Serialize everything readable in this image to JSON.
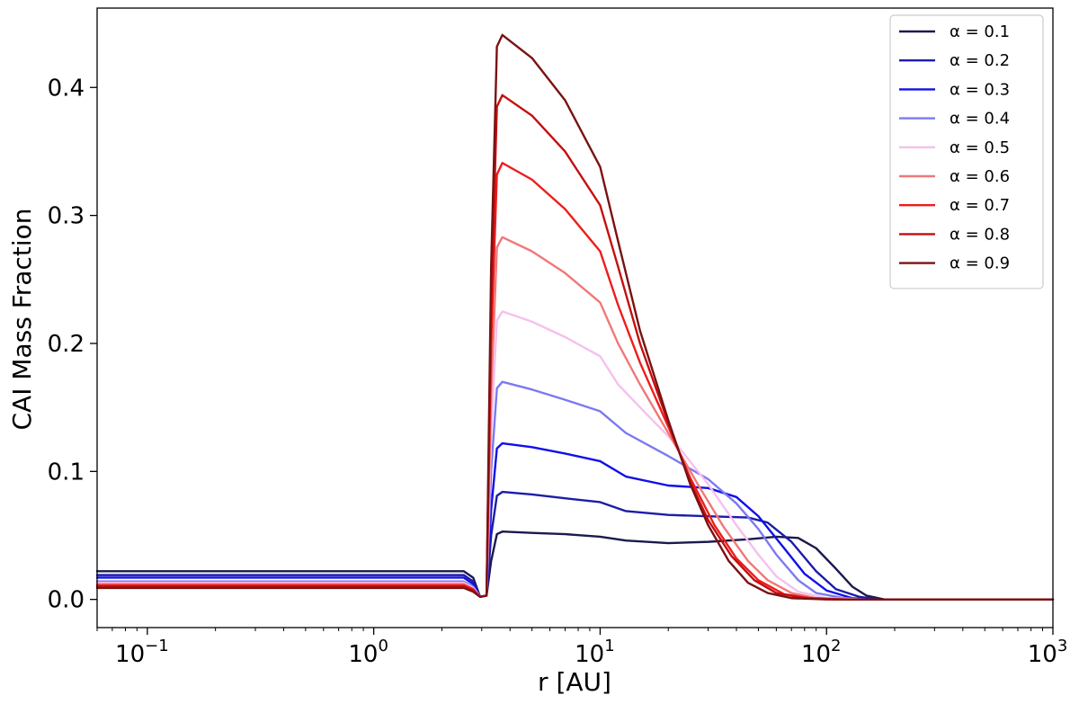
{
  "chart_data": {
    "type": "line",
    "xlabel": "r [AU]",
    "ylabel": "CAI Mass Fraction",
    "xscale": "log",
    "xlim": [
      0.06,
      1000
    ],
    "ylim": [
      -0.022,
      0.462
    ],
    "grid": false,
    "legend_position": "top-right",
    "x_ticks": [
      {
        "base": "10",
        "exp": "−1",
        "value": 0.1
      },
      {
        "base": "10",
        "exp": "0",
        "value": 1
      },
      {
        "base": "10",
        "exp": "1",
        "value": 10
      },
      {
        "base": "10",
        "exp": "2",
        "value": 100
      },
      {
        "base": "10",
        "exp": "3",
        "value": 1000
      }
    ],
    "y_ticks": [
      {
        "label": "0.0",
        "value": 0.0
      },
      {
        "label": "0.1",
        "value": 0.1
      },
      {
        "label": "0.2",
        "value": 0.2
      },
      {
        "label": "0.3",
        "value": 0.3
      },
      {
        "label": "0.4",
        "value": 0.4
      }
    ],
    "series": [
      {
        "name": "α = 0.1",
        "color": "#1a1a4e",
        "points": [
          [
            0.06,
            0.022
          ],
          [
            2.5,
            0.022
          ],
          [
            2.75,
            0.017
          ],
          [
            2.95,
            0.002
          ],
          [
            3.15,
            0.003
          ],
          [
            3.3,
            0.03
          ],
          [
            3.5,
            0.051
          ],
          [
            3.7,
            0.053
          ],
          [
            5,
            0.052
          ],
          [
            7,
            0.051
          ],
          [
            10,
            0.049
          ],
          [
            13,
            0.046
          ],
          [
            20,
            0.044
          ],
          [
            30,
            0.045
          ],
          [
            45,
            0.047
          ],
          [
            60,
            0.049
          ],
          [
            75,
            0.048
          ],
          [
            90,
            0.04
          ],
          [
            110,
            0.024
          ],
          [
            130,
            0.01
          ],
          [
            150,
            0.003
          ],
          [
            180,
            0.0
          ],
          [
            1000,
            0.0
          ]
        ]
      },
      {
        "name": "α = 0.2",
        "color": "#1c1ca8",
        "points": [
          [
            0.06,
            0.019
          ],
          [
            2.5,
            0.019
          ],
          [
            2.75,
            0.014
          ],
          [
            2.95,
            0.002
          ],
          [
            3.15,
            0.003
          ],
          [
            3.3,
            0.05
          ],
          [
            3.5,
            0.081
          ],
          [
            3.7,
            0.084
          ],
          [
            5,
            0.082
          ],
          [
            7,
            0.079
          ],
          [
            10,
            0.076
          ],
          [
            13,
            0.069
          ],
          [
            20,
            0.066
          ],
          [
            30,
            0.065
          ],
          [
            45,
            0.064
          ],
          [
            55,
            0.06
          ],
          [
            70,
            0.045
          ],
          [
            90,
            0.022
          ],
          [
            110,
            0.008
          ],
          [
            140,
            0.002
          ],
          [
            170,
            0.0
          ],
          [
            1000,
            0.0
          ]
        ]
      },
      {
        "name": "α = 0.3",
        "color": "#1010e8",
        "points": [
          [
            0.06,
            0.017
          ],
          [
            2.5,
            0.017
          ],
          [
            2.75,
            0.012
          ],
          [
            2.95,
            0.002
          ],
          [
            3.15,
            0.003
          ],
          [
            3.3,
            0.07
          ],
          [
            3.5,
            0.118
          ],
          [
            3.7,
            0.122
          ],
          [
            5,
            0.119
          ],
          [
            7,
            0.114
          ],
          [
            10,
            0.108
          ],
          [
            13,
            0.096
          ],
          [
            20,
            0.089
          ],
          [
            30,
            0.087
          ],
          [
            40,
            0.08
          ],
          [
            50,
            0.065
          ],
          [
            65,
            0.04
          ],
          [
            80,
            0.02
          ],
          [
            100,
            0.007
          ],
          [
            130,
            0.001
          ],
          [
            160,
            0.0
          ],
          [
            1000,
            0.0
          ]
        ]
      },
      {
        "name": "α = 0.4",
        "color": "#7a7af2",
        "points": [
          [
            0.06,
            0.014
          ],
          [
            2.5,
            0.014
          ],
          [
            2.75,
            0.01
          ],
          [
            2.95,
            0.002
          ],
          [
            3.15,
            0.003
          ],
          [
            3.3,
            0.1
          ],
          [
            3.5,
            0.165
          ],
          [
            3.7,
            0.17
          ],
          [
            5,
            0.164
          ],
          [
            7,
            0.156
          ],
          [
            10,
            0.147
          ],
          [
            13,
            0.13
          ],
          [
            20,
            0.112
          ],
          [
            30,
            0.094
          ],
          [
            40,
            0.075
          ],
          [
            50,
            0.055
          ],
          [
            60,
            0.035
          ],
          [
            75,
            0.015
          ],
          [
            90,
            0.005
          ],
          [
            120,
            0.001
          ],
          [
            150,
            0.0
          ],
          [
            1000,
            0.0
          ]
        ]
      },
      {
        "name": "α = 0.5",
        "color": "#f5c0ee",
        "points": [
          [
            0.06,
            0.013
          ],
          [
            2.5,
            0.013
          ],
          [
            2.75,
            0.009
          ],
          [
            2.95,
            0.002
          ],
          [
            3.15,
            0.003
          ],
          [
            3.3,
            0.13
          ],
          [
            3.5,
            0.218
          ],
          [
            3.7,
            0.225
          ],
          [
            5,
            0.217
          ],
          [
            7,
            0.205
          ],
          [
            10,
            0.19
          ],
          [
            12,
            0.168
          ],
          [
            16,
            0.145
          ],
          [
            22,
            0.12
          ],
          [
            30,
            0.09
          ],
          [
            40,
            0.058
          ],
          [
            50,
            0.035
          ],
          [
            60,
            0.018
          ],
          [
            75,
            0.006
          ],
          [
            100,
            0.001
          ],
          [
            140,
            0.0
          ],
          [
            1000,
            0.0
          ]
        ]
      },
      {
        "name": "α = 0.6",
        "color": "#f07878",
        "points": [
          [
            0.06,
            0.012
          ],
          [
            2.5,
            0.012
          ],
          [
            2.75,
            0.008
          ],
          [
            2.95,
            0.002
          ],
          [
            3.15,
            0.003
          ],
          [
            3.3,
            0.16
          ],
          [
            3.5,
            0.275
          ],
          [
            3.7,
            0.283
          ],
          [
            5,
            0.272
          ],
          [
            7,
            0.255
          ],
          [
            10,
            0.232
          ],
          [
            12,
            0.2
          ],
          [
            15,
            0.168
          ],
          [
            20,
            0.13
          ],
          [
            27,
            0.09
          ],
          [
            35,
            0.057
          ],
          [
            45,
            0.03
          ],
          [
            55,
            0.015
          ],
          [
            70,
            0.005
          ],
          [
            90,
            0.001
          ],
          [
            130,
            0.0
          ],
          [
            1000,
            0.0
          ]
        ]
      },
      {
        "name": "α = 0.7",
        "color": "#ee1c1c",
        "points": [
          [
            0.06,
            0.011
          ],
          [
            2.5,
            0.011
          ],
          [
            2.75,
            0.008
          ],
          [
            2.95,
            0.002
          ],
          [
            3.15,
            0.003
          ],
          [
            3.3,
            0.2
          ],
          [
            3.5,
            0.332
          ],
          [
            3.7,
            0.341
          ],
          [
            5,
            0.328
          ],
          [
            7,
            0.305
          ],
          [
            10,
            0.272
          ],
          [
            12,
            0.23
          ],
          [
            15,
            0.185
          ],
          [
            20,
            0.135
          ],
          [
            25,
            0.095
          ],
          [
            32,
            0.058
          ],
          [
            40,
            0.032
          ],
          [
            50,
            0.015
          ],
          [
            65,
            0.004
          ],
          [
            85,
            0.001
          ],
          [
            120,
            0.0
          ],
          [
            1000,
            0.0
          ]
        ]
      },
      {
        "name": "α = 0.8",
        "color": "#c40f0f",
        "points": [
          [
            0.06,
            0.01
          ],
          [
            2.5,
            0.01
          ],
          [
            2.75,
            0.007
          ],
          [
            2.95,
            0.002
          ],
          [
            3.15,
            0.003
          ],
          [
            3.3,
            0.23
          ],
          [
            3.5,
            0.385
          ],
          [
            3.7,
            0.394
          ],
          [
            5,
            0.378
          ],
          [
            7,
            0.35
          ],
          [
            10,
            0.308
          ],
          [
            12,
            0.26
          ],
          [
            15,
            0.2
          ],
          [
            20,
            0.138
          ],
          [
            25,
            0.092
          ],
          [
            30,
            0.062
          ],
          [
            38,
            0.034
          ],
          [
            48,
            0.015
          ],
          [
            60,
            0.005
          ],
          [
            80,
            0.001
          ],
          [
            110,
            0.0
          ],
          [
            1000,
            0.0
          ]
        ]
      },
      {
        "name": "α = 0.9",
        "color": "#7a1212",
        "points": [
          [
            0.06,
            0.009
          ],
          [
            2.5,
            0.009
          ],
          [
            2.75,
            0.006
          ],
          [
            2.95,
            0.002
          ],
          [
            3.15,
            0.003
          ],
          [
            3.3,
            0.26
          ],
          [
            3.5,
            0.432
          ],
          [
            3.7,
            0.441
          ],
          [
            5,
            0.423
          ],
          [
            7,
            0.39
          ],
          [
            10,
            0.338
          ],
          [
            12,
            0.28
          ],
          [
            15,
            0.21
          ],
          [
            20,
            0.14
          ],
          [
            25,
            0.09
          ],
          [
            30,
            0.058
          ],
          [
            37,
            0.03
          ],
          [
            45,
            0.013
          ],
          [
            55,
            0.005
          ],
          [
            70,
            0.001
          ],
          [
            100,
            0.0
          ],
          [
            1000,
            0.0
          ]
        ]
      }
    ]
  }
}
